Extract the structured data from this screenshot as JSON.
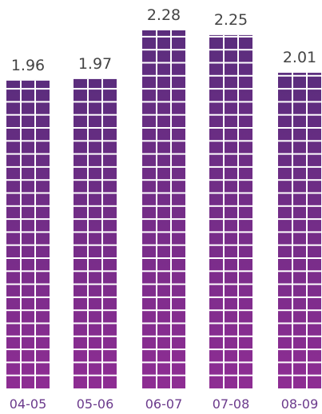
{
  "chart_data": {
    "type": "bar",
    "categories": [
      "04-05",
      "05-06",
      "06-07",
      "07-08",
      "08-09"
    ],
    "values": [
      1.96,
      1.97,
      2.28,
      2.25,
      2.01
    ],
    "value_labels": [
      "1.96",
      "1.97",
      "2.28",
      "2.25",
      "2.01"
    ],
    "title": "",
    "xlabel": "",
    "ylabel": "",
    "ylim": [
      0,
      2.28
    ],
    "grid": false,
    "legend": "none",
    "style": "stacked-tile-columns",
    "colors": {
      "bar_top": "#5b2d7d",
      "bar_bottom": "#8e2d93",
      "tile_gap": "#ffffff",
      "value_text": "#444444",
      "tick_text": "#6b3a8c"
    }
  }
}
